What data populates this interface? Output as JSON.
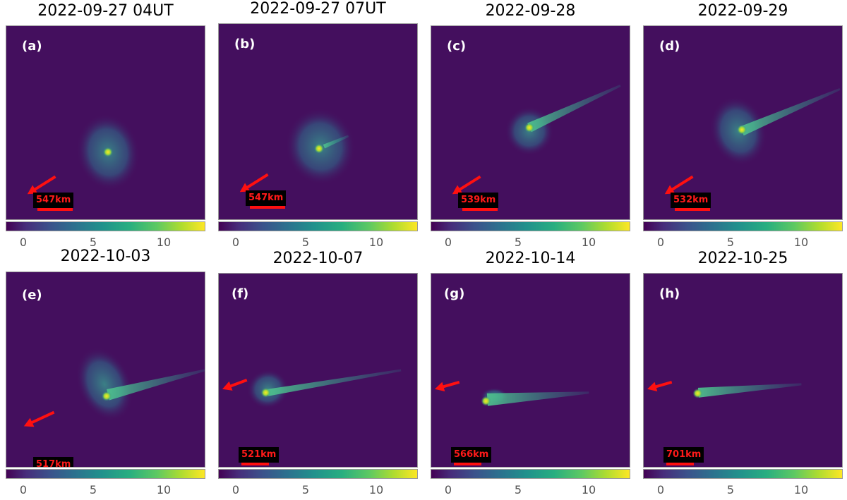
{
  "panels": [
    {
      "date": "2022-09-27 04UT",
      "label": "(a)",
      "scale": "547km",
      "ticks": [
        "0",
        "5",
        "10"
      ]
    },
    {
      "date": "2022-09-27 07UT",
      "label": "(b)",
      "scale": "547km",
      "ticks": [
        "0",
        "5",
        "10"
      ]
    },
    {
      "date": "2022-09-28",
      "label": "(c)",
      "scale": "539km",
      "ticks": [
        "0",
        "5",
        "10"
      ]
    },
    {
      "date": "2022-09-29",
      "label": "(d)",
      "scale": "532km",
      "ticks": [
        "0",
        "5",
        "10"
      ]
    },
    {
      "date": "2022-10-03",
      "label": "(e)",
      "scale": "517km",
      "ticks": [
        "0",
        "5",
        "10"
      ]
    },
    {
      "date": "2022-10-07",
      "label": "(f)",
      "scale": "521km",
      "ticks": [
        "0",
        "5",
        "10"
      ]
    },
    {
      "date": "2022-10-14",
      "label": "(g)",
      "scale": "566km",
      "ticks": [
        "0",
        "5",
        "10"
      ]
    },
    {
      "date": "2022-10-25",
      "label": "(h)",
      "scale": "701km",
      "ticks": [
        "0",
        "5",
        "10"
      ]
    }
  ],
  "colors": {
    "background": "#440f5e",
    "arrow": "#ff1010",
    "scale_text": "#ff1a1a",
    "colormap": "viridis"
  }
}
